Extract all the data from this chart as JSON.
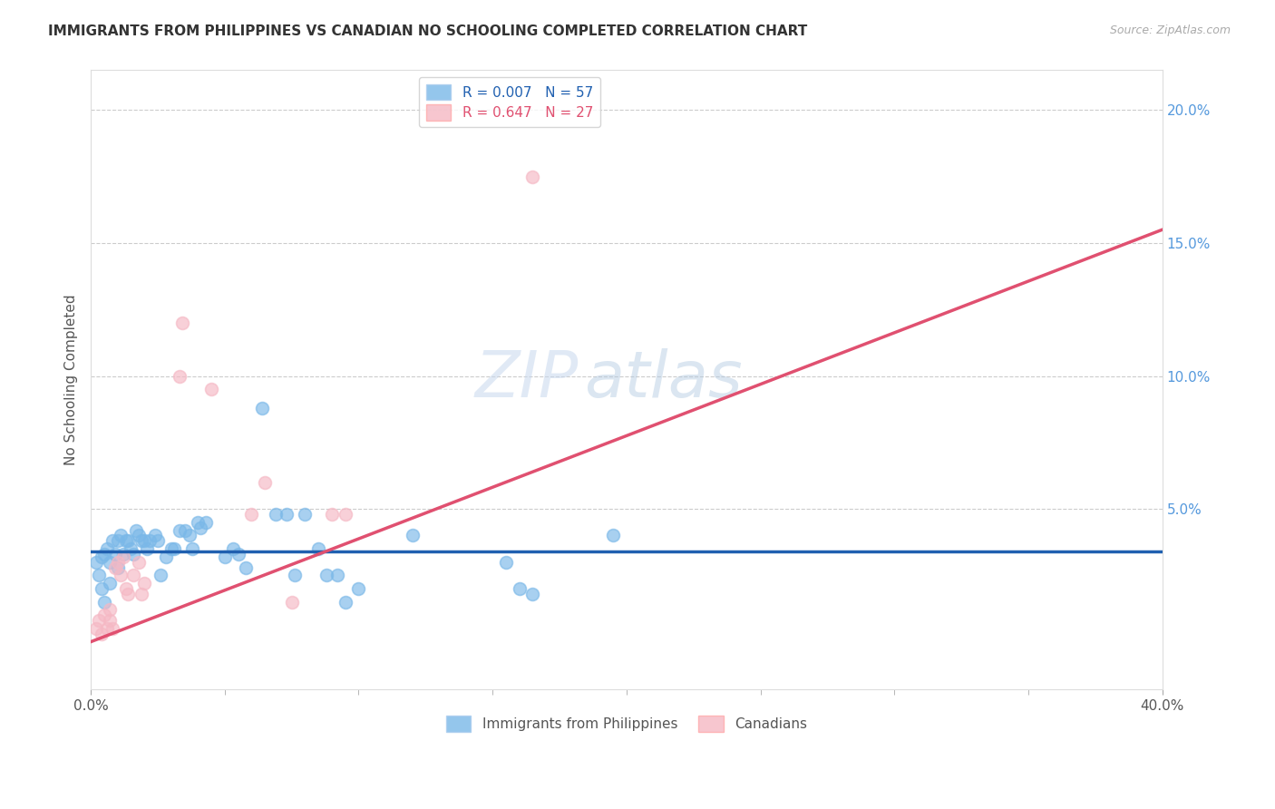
{
  "title": "IMMIGRANTS FROM PHILIPPINES VS CANADIAN NO SCHOOLING COMPLETED CORRELATION CHART",
  "source": "Source: ZipAtlas.com",
  "ylabel": "No Schooling Completed",
  "y_ticks": [
    0.0,
    0.05,
    0.1,
    0.15,
    0.2
  ],
  "y_tick_labels": [
    "",
    "5.0%",
    "10.0%",
    "15.0%",
    "20.0%"
  ],
  "x_range": [
    0.0,
    0.4
  ],
  "y_range": [
    -0.018,
    0.215
  ],
  "watermark_zip": "ZIP",
  "watermark_atlas": "atlas",
  "philippines_scatter": [
    [
      0.002,
      0.03
    ],
    [
      0.003,
      0.025
    ],
    [
      0.004,
      0.032
    ],
    [
      0.004,
      0.02
    ],
    [
      0.005,
      0.033
    ],
    [
      0.005,
      0.015
    ],
    [
      0.006,
      0.035
    ],
    [
      0.007,
      0.03
    ],
    [
      0.007,
      0.022
    ],
    [
      0.008,
      0.038
    ],
    [
      0.009,
      0.033
    ],
    [
      0.01,
      0.028
    ],
    [
      0.01,
      0.038
    ],
    [
      0.011,
      0.04
    ],
    [
      0.012,
      0.033
    ],
    [
      0.013,
      0.038
    ],
    [
      0.014,
      0.038
    ],
    [
      0.015,
      0.035
    ],
    [
      0.016,
      0.033
    ],
    [
      0.017,
      0.042
    ],
    [
      0.018,
      0.04
    ],
    [
      0.019,
      0.038
    ],
    [
      0.02,
      0.038
    ],
    [
      0.021,
      0.035
    ],
    [
      0.022,
      0.038
    ],
    [
      0.024,
      0.04
    ],
    [
      0.025,
      0.038
    ],
    [
      0.026,
      0.025
    ],
    [
      0.028,
      0.032
    ],
    [
      0.03,
      0.035
    ],
    [
      0.031,
      0.035
    ],
    [
      0.033,
      0.042
    ],
    [
      0.035,
      0.042
    ],
    [
      0.037,
      0.04
    ],
    [
      0.038,
      0.035
    ],
    [
      0.04,
      0.045
    ],
    [
      0.041,
      0.043
    ],
    [
      0.043,
      0.045
    ],
    [
      0.05,
      0.032
    ],
    [
      0.053,
      0.035
    ],
    [
      0.055,
      0.033
    ],
    [
      0.058,
      0.028
    ],
    [
      0.064,
      0.088
    ],
    [
      0.069,
      0.048
    ],
    [
      0.073,
      0.048
    ],
    [
      0.076,
      0.025
    ],
    [
      0.08,
      0.048
    ],
    [
      0.085,
      0.035
    ],
    [
      0.088,
      0.025
    ],
    [
      0.092,
      0.025
    ],
    [
      0.095,
      0.015
    ],
    [
      0.1,
      0.02
    ],
    [
      0.12,
      0.04
    ],
    [
      0.155,
      0.03
    ],
    [
      0.16,
      0.02
    ],
    [
      0.165,
      0.018
    ],
    [
      0.195,
      0.04
    ]
  ],
  "canadians_scatter": [
    [
      0.002,
      0.005
    ],
    [
      0.003,
      0.008
    ],
    [
      0.004,
      0.003
    ],
    [
      0.005,
      0.01
    ],
    [
      0.006,
      0.005
    ],
    [
      0.007,
      0.008
    ],
    [
      0.007,
      0.012
    ],
    [
      0.008,
      0.005
    ],
    [
      0.009,
      0.028
    ],
    [
      0.01,
      0.03
    ],
    [
      0.011,
      0.025
    ],
    [
      0.012,
      0.032
    ],
    [
      0.013,
      0.02
    ],
    [
      0.014,
      0.018
    ],
    [
      0.016,
      0.025
    ],
    [
      0.018,
      0.03
    ],
    [
      0.019,
      0.018
    ],
    [
      0.02,
      0.022
    ],
    [
      0.033,
      0.1
    ],
    [
      0.034,
      0.12
    ],
    [
      0.045,
      0.095
    ],
    [
      0.06,
      0.048
    ],
    [
      0.065,
      0.06
    ],
    [
      0.075,
      0.015
    ],
    [
      0.09,
      0.048
    ],
    [
      0.095,
      0.048
    ],
    [
      0.165,
      0.175
    ]
  ],
  "philippines_line": [
    0.0,
    0.4,
    0.034,
    0.034
  ],
  "canadians_line": [
    0.0,
    0.4,
    0.0,
    0.155
  ],
  "scatter_size": 100,
  "blue_color": "#7ab8e8",
  "pink_color": "#f5b8c4",
  "blue_edge_color": "#7ab8e8",
  "pink_edge_color": "#f5b8c4",
  "blue_line_color": "#2060b0",
  "pink_line_color": "#e05070",
  "grid_color": "#cccccc",
  "background_color": "#ffffff",
  "legend_blue_r": "R = 0.007",
  "legend_blue_n": "N = 57",
  "legend_pink_r": "R = 0.647",
  "legend_pink_n": "N = 27",
  "bottom_legend_blue": "Immigrants from Philippines",
  "bottom_legend_pink": "Canadians"
}
